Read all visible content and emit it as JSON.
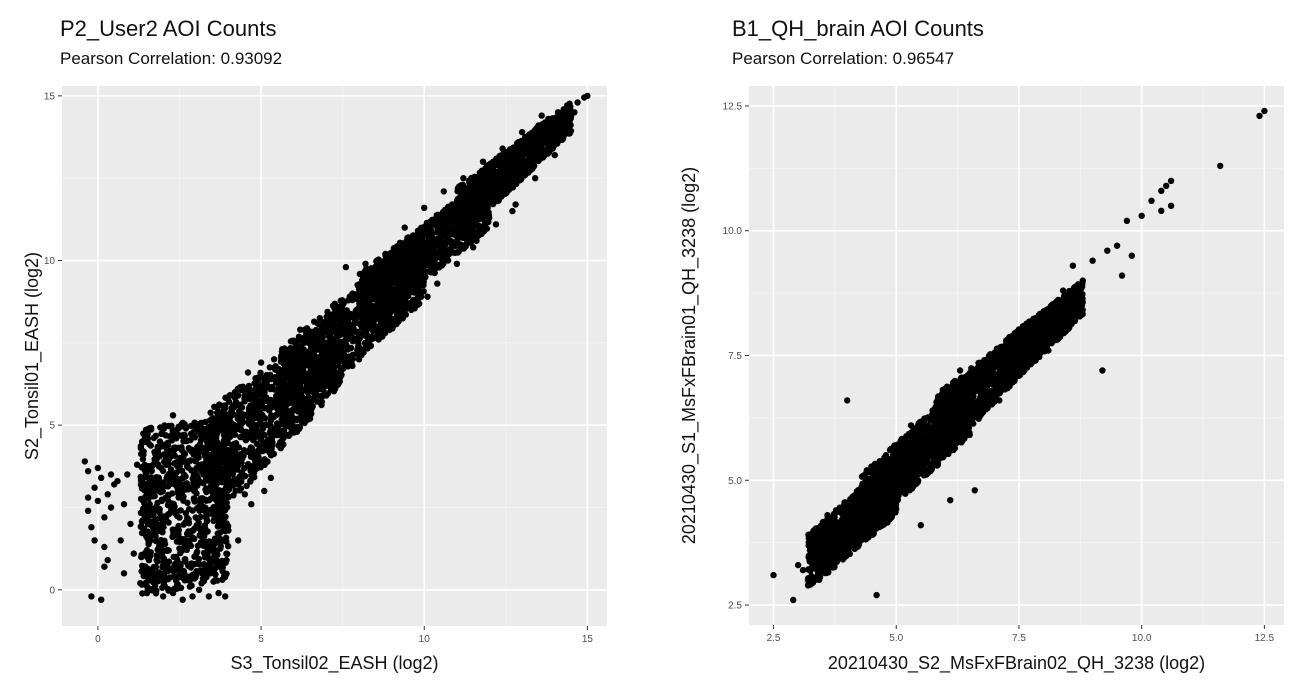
{
  "chart_data": [
    {
      "type": "scatter",
      "title": "P2_User2 AOI Counts",
      "subtitle": "Pearson Correlation: 0.93092",
      "xlabel": "S3_Tonsil02_EASH (log2)",
      "ylabel": "S2_Tonsil01_EASH (log2)",
      "xlim": [
        -1.1,
        15.6
      ],
      "ylim": [
        -1.1,
        15.3
      ],
      "xticks": [
        0,
        5,
        10,
        15
      ],
      "yticks": [
        0,
        5,
        10,
        15
      ],
      "xtick_labels": [
        "0",
        "5",
        "10",
        "15"
      ],
      "ytick_labels": [
        "0",
        "5",
        "10",
        "15"
      ],
      "grid": true,
      "background": "#ebebeb",
      "point_color": "#000000",
      "correlation": 0.93092,
      "points": [
        [
          -0.4,
          3.9
        ],
        [
          -0.3,
          3.6
        ],
        [
          -0.3,
          2.4
        ],
        [
          -0.2,
          1.9
        ],
        [
          -0.1,
          3.1
        ],
        [
          0.0,
          2.7
        ],
        [
          0.1,
          3.4
        ],
        [
          0.2,
          2.2
        ],
        [
          0.3,
          2.9
        ],
        [
          0.4,
          3.5
        ],
        [
          0.2,
          1.3
        ],
        [
          -0.1,
          1.5
        ],
        [
          0.5,
          3.2
        ],
        [
          0.3,
          0.9
        ],
        [
          -0.2,
          -0.2
        ],
        [
          0.1,
          -0.3
        ],
        [
          0.2,
          0.7
        ],
        [
          -0.3,
          2.8
        ],
        [
          0.4,
          2.5
        ],
        [
          0.0,
          3.7
        ],
        [
          0.6,
          3.3
        ],
        [
          0.8,
          2.6
        ],
        [
          0.7,
          1.5
        ],
        [
          0.9,
          3.5
        ],
        [
          1.0,
          2.0
        ],
        [
          1.1,
          1.1
        ],
        [
          1.2,
          3.8
        ],
        [
          0.8,
          0.5
        ],
        [
          1.3,
          0.2
        ],
        [
          1.5,
          -0.1
        ],
        [
          1.7,
          0.0
        ],
        [
          2.0,
          -0.2
        ],
        [
          2.3,
          -0.1
        ],
        [
          2.6,
          -0.3
        ],
        [
          2.9,
          -0.2
        ],
        [
          3.1,
          0.0
        ],
        [
          3.4,
          -0.2
        ],
        [
          3.7,
          -0.1
        ],
        [
          3.9,
          -0.2
        ],
        [
          1.8,
          0.9
        ],
        [
          2.2,
          0.6
        ],
        [
          2.8,
          0.4
        ],
        [
          3.2,
          0.5
        ],
        [
          3.6,
          0.3
        ],
        [
          1.4,
          4.2
        ],
        [
          1.6,
          3.7
        ],
        [
          1.9,
          4.5
        ],
        [
          2.1,
          4.3
        ],
        [
          2.4,
          4.6
        ],
        [
          2.7,
          4.9
        ],
        [
          3.0,
          4.8
        ],
        [
          3.3,
          5.1
        ],
        [
          2.3,
          5.3
        ],
        [
          3.5,
          5.0
        ],
        [
          3.8,
          5.4
        ],
        [
          4.0,
          5.2
        ],
        [
          4.3,
          5.6
        ],
        [
          4.5,
          5.9
        ],
        [
          4.8,
          5.6
        ],
        [
          5.0,
          6.1
        ],
        [
          5.2,
          6.5
        ],
        [
          5.5,
          6.4
        ],
        [
          5.8,
          6.9
        ],
        [
          6.0,
          7.1
        ],
        [
          6.3,
          7.3
        ],
        [
          6.6,
          7.7
        ],
        [
          6.9,
          7.8
        ],
        [
          7.2,
          8.2
        ],
        [
          7.5,
          8.4
        ],
        [
          7.8,
          8.8
        ],
        [
          8.1,
          9.0
        ],
        [
          8.4,
          9.3
        ],
        [
          8.7,
          9.6
        ],
        [
          9.0,
          9.9
        ],
        [
          9.3,
          10.1
        ],
        [
          9.6,
          10.5
        ],
        [
          9.9,
          10.7
        ],
        [
          10.2,
          10.9
        ],
        [
          10.5,
          11.3
        ],
        [
          10.8,
          11.5
        ],
        [
          11.1,
          11.8
        ],
        [
          11.4,
          12.0
        ],
        [
          11.7,
          12.4
        ],
        [
          12.0,
          12.6
        ],
        [
          12.3,
          12.9
        ],
        [
          12.6,
          13.2
        ],
        [
          12.9,
          13.6
        ],
        [
          13.2,
          13.8
        ],
        [
          13.5,
          14.1
        ],
        [
          13.8,
          14.3
        ],
        [
          14.1,
          14.5
        ],
        [
          14.4,
          14.6
        ],
        [
          14.7,
          14.8
        ],
        [
          14.9,
          14.95
        ],
        [
          15.0,
          15.0
        ],
        [
          14.6,
          14.5
        ],
        [
          5.6,
          4.3
        ],
        [
          6.1,
          4.8
        ],
        [
          6.5,
          5.2
        ],
        [
          7.0,
          5.9
        ],
        [
          7.4,
          6.4
        ],
        [
          8.0,
          7.0
        ],
        [
          8.6,
          7.6
        ],
        [
          9.2,
          8.2
        ],
        [
          9.8,
          8.8
        ],
        [
          10.4,
          9.3
        ],
        [
          11.0,
          9.9
        ],
        [
          11.6,
          10.6
        ],
        [
          12.2,
          11.1
        ],
        [
          12.8,
          11.7
        ],
        [
          13.4,
          12.5
        ],
        [
          14.0,
          13.2
        ],
        [
          7.6,
          9.8
        ],
        [
          8.2,
          9.9
        ],
        [
          9.4,
          11.0
        ],
        [
          10.0,
          11.6
        ],
        [
          10.6,
          12.1
        ],
        [
          11.2,
          12.5
        ],
        [
          11.8,
          13.0
        ],
        [
          12.4,
          13.4
        ],
        [
          13.0,
          13.9
        ],
        [
          13.6,
          14.4
        ],
        [
          5.4,
          7.0
        ],
        [
          6.2,
          7.9
        ],
        [
          5.0,
          6.9
        ],
        [
          4.6,
          6.6
        ],
        [
          4.2,
          6.0
        ],
        [
          3.9,
          5.6
        ],
        [
          4.0,
          1.8
        ],
        [
          4.3,
          1.5
        ],
        [
          3.5,
          0.9
        ],
        [
          2.5,
          0.8
        ],
        [
          4.7,
          2.6
        ],
        [
          5.1,
          3.0
        ],
        [
          5.3,
          3.4
        ],
        [
          4.5,
          2.9
        ],
        [
          9.6,
          8.5
        ],
        [
          10.1,
          8.9
        ],
        [
          11.5,
          10.4
        ],
        [
          12.7,
          11.5
        ],
        [
          8.8,
          7.8
        ],
        [
          7.8,
          6.8
        ]
      ],
      "bands": [
        {
          "x": [
            1.3,
            4.0
          ],
          "lo": [
            -0.2,
            0.3
          ],
          "hi": [
            4.9,
            5.3
          ]
        },
        {
          "x": [
            3.3,
            7.5
          ],
          "lo": [
            1.8,
            6.3
          ],
          "hi": [
            5.4,
            8.4
          ]
        },
        {
          "x": [
            5.5,
            10.0
          ],
          "lo": [
            4.8,
            8.8
          ],
          "hi": [
            7.2,
            11.0
          ]
        },
        {
          "x": [
            8.0,
            12.0
          ],
          "lo": [
            7.7,
            11.0
          ],
          "hi": [
            9.6,
            12.6
          ]
        },
        {
          "x": [
            11.0,
            14.5
          ],
          "lo": [
            10.6,
            13.9
          ],
          "hi": [
            12.2,
            14.8
          ]
        }
      ]
    },
    {
      "type": "scatter",
      "title": "B1_QH_brain AOI Counts",
      "subtitle": "Pearson Correlation: 0.96547",
      "xlabel": "20210430_S2_MsFxFBrain02_QH_3238 (log2)",
      "ylabel": "20210430_S1_MsFxFBrain01_QH_3238 (log2)",
      "xlim": [
        2.0,
        12.9
      ],
      "ylim": [
        2.1,
        12.9
      ],
      "xticks": [
        2.5,
        5.0,
        7.5,
        10.0,
        12.5
      ],
      "yticks": [
        2.5,
        5.0,
        7.5,
        10.0,
        12.5
      ],
      "xtick_labels": [
        "2.5",
        "5.0",
        "7.5",
        "10.0",
        "12.5"
      ],
      "ytick_labels": [
        "2.5",
        "5.0",
        "7.5",
        "10.0",
        "12.5"
      ],
      "grid": true,
      "background": "#ebebeb",
      "point_color": "#000000",
      "correlation": 0.96547,
      "points": [
        [
          2.5,
          3.1
        ],
        [
          2.9,
          2.6
        ],
        [
          3.0,
          3.3
        ],
        [
          3.1,
          3.2
        ],
        [
          3.2,
          3.0
        ],
        [
          3.3,
          3.8
        ],
        [
          3.4,
          3.1
        ],
        [
          3.5,
          3.5
        ],
        [
          3.6,
          3.2
        ],
        [
          3.7,
          4.2
        ],
        [
          3.8,
          3.4
        ],
        [
          3.9,
          3.7
        ],
        [
          4.0,
          6.6
        ],
        [
          4.1,
          4.5
        ],
        [
          4.2,
          4.0
        ],
        [
          4.3,
          4.8
        ],
        [
          4.5,
          4.3
        ],
        [
          4.6,
          2.7
        ],
        [
          4.8,
          5.1
        ],
        [
          5.0,
          4.9
        ],
        [
          5.2,
          5.5
        ],
        [
          5.4,
          5.3
        ],
        [
          5.5,
          4.1
        ],
        [
          5.6,
          5.9
        ],
        [
          5.8,
          5.6
        ],
        [
          6.0,
          6.3
        ],
        [
          6.2,
          6.0
        ],
        [
          6.5,
          7.1
        ],
        [
          6.6,
          4.8
        ],
        [
          6.7,
          6.8
        ],
        [
          6.9,
          7.0
        ],
        [
          7.0,
          7.4
        ],
        [
          7.2,
          7.3
        ],
        [
          7.4,
          7.8
        ],
        [
          7.6,
          7.7
        ],
        [
          7.8,
          8.1
        ],
        [
          8.0,
          8.3
        ],
        [
          8.2,
          8.5
        ],
        [
          8.4,
          8.8
        ],
        [
          8.5,
          8.6
        ],
        [
          8.6,
          9.3
        ],
        [
          8.8,
          9.0
        ],
        [
          9.0,
          9.4
        ],
        [
          9.2,
          7.2
        ],
        [
          9.3,
          9.6
        ],
        [
          9.5,
          9.7
        ],
        [
          9.7,
          10.2
        ],
        [
          9.8,
          9.5
        ],
        [
          10.0,
          10.3
        ],
        [
          10.2,
          10.6
        ],
        [
          10.4,
          10.4
        ],
        [
          10.5,
          10.9
        ],
        [
          10.6,
          11.0
        ],
        [
          10.6,
          10.5
        ],
        [
          10.4,
          10.8
        ],
        [
          11.6,
          11.3
        ],
        [
          12.4,
          12.3
        ],
        [
          12.5,
          12.4
        ],
        [
          6.1,
          4.6
        ],
        [
          6.3,
          7.2
        ],
        [
          5.3,
          6.1
        ],
        [
          7.1,
          6.6
        ],
        [
          8.1,
          7.6
        ],
        [
          4.4,
          5.2
        ],
        [
          3.6,
          4.3
        ],
        [
          9.6,
          9.1
        ]
      ],
      "bands": [
        {
          "x": [
            3.2,
            5.0
          ],
          "lo": [
            2.8,
            4.3
          ],
          "hi": [
            3.9,
            5.5
          ]
        },
        {
          "x": [
            4.3,
            6.5
          ],
          "lo": [
            3.9,
            5.9
          ],
          "hi": [
            5.1,
            7.1
          ]
        },
        {
          "x": [
            5.8,
            7.8
          ],
          "lo": [
            5.3,
            7.4
          ],
          "hi": [
            6.7,
            8.2
          ]
        },
        {
          "x": [
            7.2,
            8.8
          ],
          "lo": [
            6.8,
            8.3
          ],
          "hi": [
            7.8,
            9.0
          ]
        }
      ]
    }
  ]
}
